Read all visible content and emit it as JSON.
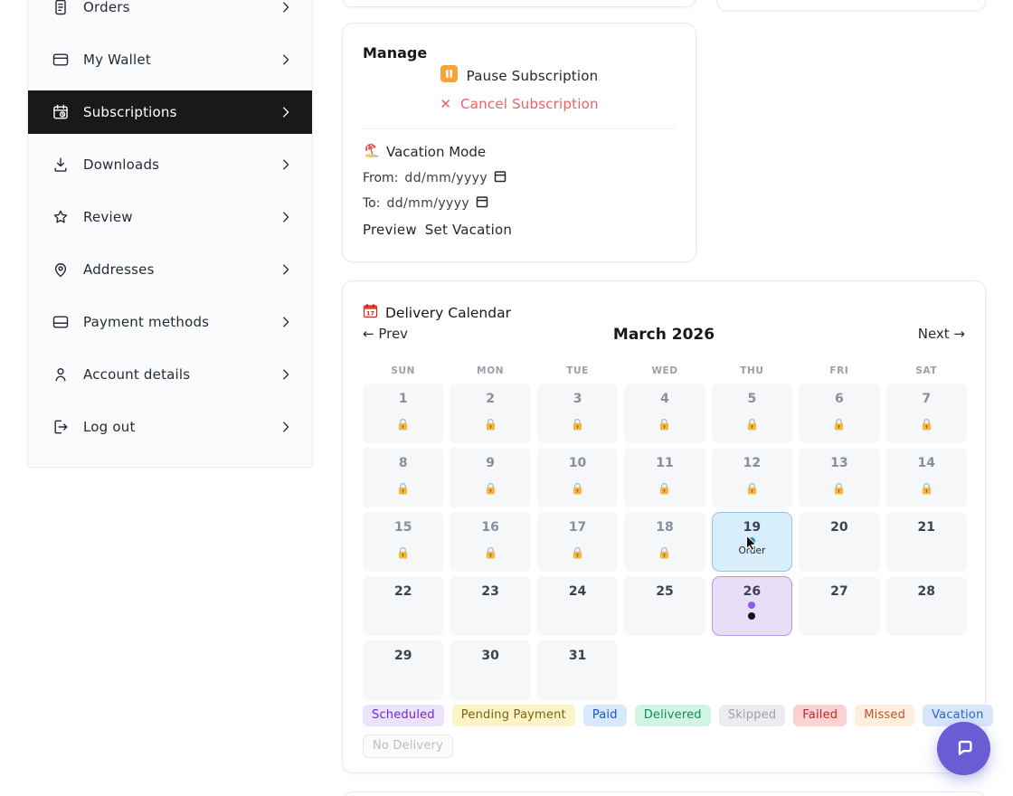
{
  "sidebar": {
    "items": [
      {
        "label": "Orders",
        "active": false
      },
      {
        "label": "My Wallet",
        "active": false
      },
      {
        "label": "Subscriptions",
        "active": true
      },
      {
        "label": "Downloads",
        "active": false
      },
      {
        "label": "Review",
        "active": false
      },
      {
        "label": "Addresses",
        "active": false
      },
      {
        "label": "Payment methods",
        "active": false
      },
      {
        "label": "Account details",
        "active": false
      },
      {
        "label": "Log out",
        "active": false
      }
    ]
  },
  "manage_card": {
    "title": "Manage",
    "pause_label": "Pause Subscription",
    "cancel_icon": "✕",
    "cancel_label": "Cancel Subscription",
    "vacation_title": "Vacation Mode",
    "from_label": "From:",
    "to_label": "To:",
    "date_value": "dd/mm/yyyy",
    "preview_label": "Preview",
    "set_vacation_label": "Set Vacation"
  },
  "calendar_card": {
    "title": "Delivery Calendar",
    "prev_label": "← Prev",
    "month_title": "March 2026",
    "next_label": "Next →",
    "day_headers": [
      "SUN",
      "MON",
      "TUE",
      "WED",
      "THU",
      "FRI",
      "SAT"
    ],
    "order_day_label": "Order",
    "days": [
      {
        "num": "1",
        "state": "locked"
      },
      {
        "num": "2",
        "state": "locked"
      },
      {
        "num": "3",
        "state": "locked"
      },
      {
        "num": "4",
        "state": "locked"
      },
      {
        "num": "5",
        "state": "locked"
      },
      {
        "num": "6",
        "state": "locked"
      },
      {
        "num": "7",
        "state": "locked"
      },
      {
        "num": "8",
        "state": "locked"
      },
      {
        "num": "9",
        "state": "locked"
      },
      {
        "num": "10",
        "state": "locked"
      },
      {
        "num": "11",
        "state": "locked"
      },
      {
        "num": "12",
        "state": "locked"
      },
      {
        "num": "13",
        "state": "locked"
      },
      {
        "num": "14",
        "state": "locked"
      },
      {
        "num": "15",
        "state": "locked"
      },
      {
        "num": "16",
        "state": "locked"
      },
      {
        "num": "17",
        "state": "locked"
      },
      {
        "num": "18",
        "state": "locked"
      },
      {
        "num": "19",
        "state": "order"
      },
      {
        "num": "20",
        "state": "open"
      },
      {
        "num": "21",
        "state": "open"
      },
      {
        "num": "22",
        "state": "open"
      },
      {
        "num": "23",
        "state": "open"
      },
      {
        "num": "24",
        "state": "open"
      },
      {
        "num": "25",
        "state": "open"
      },
      {
        "num": "26",
        "state": "scheduled"
      },
      {
        "num": "27",
        "state": "open"
      },
      {
        "num": "28",
        "state": "open"
      },
      {
        "num": "29",
        "state": "open"
      },
      {
        "num": "30",
        "state": "open"
      },
      {
        "num": "31",
        "state": "open"
      }
    ],
    "legend": [
      {
        "label": "Scheduled",
        "bg": "#ece3fb",
        "color": "#6d28d9"
      },
      {
        "label": "Pending Payment",
        "bg": "#fdf4c5",
        "color": "#7a6016"
      },
      {
        "label": "Paid",
        "bg": "#d7e9fb",
        "color": "#1d4fd8"
      },
      {
        "label": "Delivered",
        "bg": "#d2f5e3",
        "color": "#118a5e"
      },
      {
        "label": "Skipped",
        "bg": "#ececee",
        "color": "#9aa1ac"
      },
      {
        "label": "Failed",
        "bg": "#fbd2d2",
        "color": "#c02626"
      },
      {
        "label": "Missed",
        "bg": "#fdeedd",
        "color": "#c5502c"
      },
      {
        "label": "Vacation",
        "bg": "#d8e6fb",
        "color": "#2b5fd9"
      },
      {
        "label": "No Delivery",
        "bg": "#fbfbfc",
        "color": "#b6bcc6",
        "border": "#e7e9ec"
      }
    ]
  },
  "colors": {
    "sidebar_active_bg": "#191919",
    "pause_orange": "#f9a13b",
    "cancel_red": "#f25f61",
    "day_order_bg": "#d9eefb",
    "day_order_border": "#8ac6e8",
    "day_order_dot": "#1e96d2",
    "day_scheduled_bg": "#e9def8",
    "day_scheduled_border": "#ba97e6",
    "day_scheduled_dots": [
      "#8a5cf5",
      "#141414"
    ],
    "chat_fab": "#695cd5"
  }
}
